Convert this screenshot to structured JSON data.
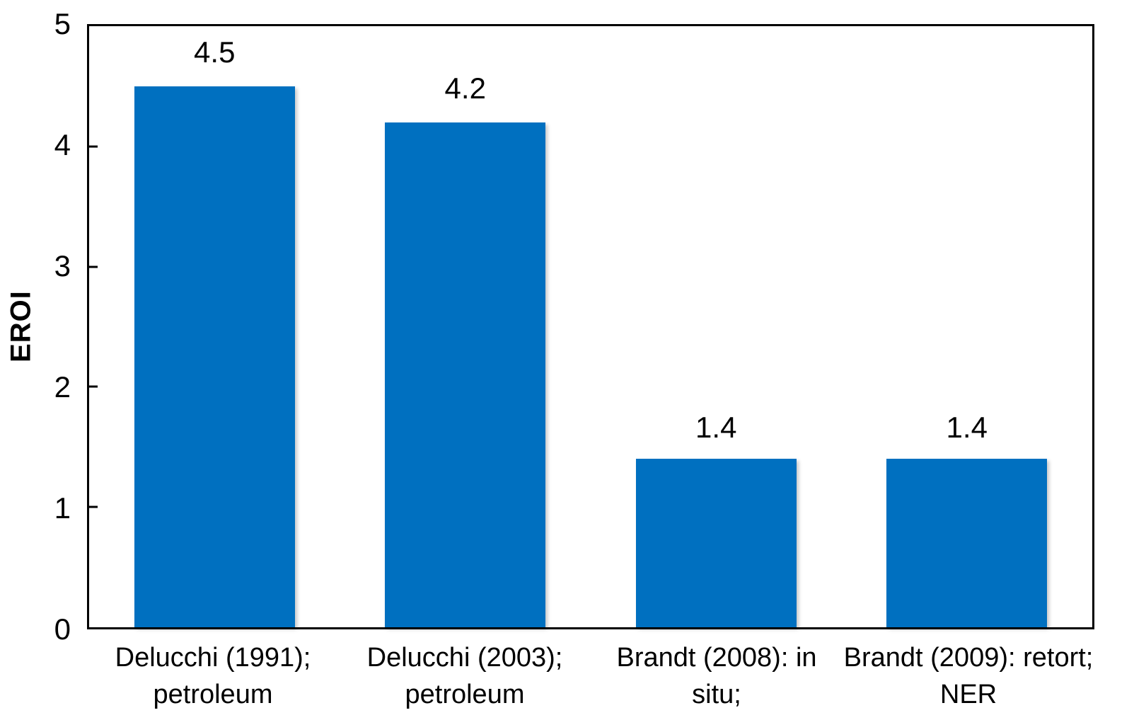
{
  "chart_data": {
    "type": "bar",
    "title": "",
    "xlabel": "",
    "ylabel": "EROI",
    "categories": [
      "Delucchi (1991); petroleum",
      "Delucchi (2003); petroleum",
      "Brandt (2008): in situ; NER",
      "Brandt (2009): retort; NER"
    ],
    "category_lines": [
      [
        "Delucchi (1991);",
        "petroleum"
      ],
      [
        "Delucchi (2003);",
        "petroleum"
      ],
      [
        "Brandt (2008): in situ;",
        "NER"
      ],
      [
        "Brandt (2009): retort;",
        "NER"
      ]
    ],
    "values": [
      4.5,
      4.2,
      1.4,
      1.4
    ],
    "data_labels": [
      "4.5",
      "4.2",
      "1.4",
      "1.4"
    ],
    "ylim": [
      0,
      5
    ],
    "yticks": [
      0,
      1,
      2,
      3,
      4,
      5
    ],
    "grid": false,
    "legend": false,
    "bar_color": "#0070C0",
    "axis_color": "#000000",
    "text_color": "#000000",
    "background_color": "#FFFFFF"
  }
}
